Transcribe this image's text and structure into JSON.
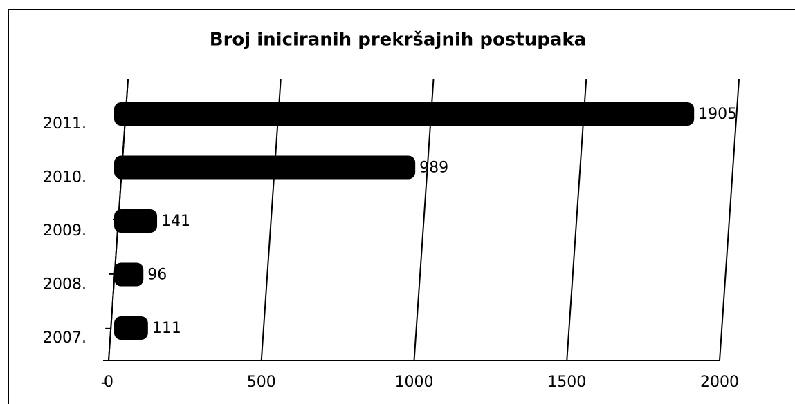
{
  "chart_data": {
    "type": "bar",
    "orientation": "horizontal",
    "title": "Broj iniciranih  prekršajnih postupaka",
    "categories": [
      "2011.",
      "2010.",
      "2009.",
      "2008.",
      "2007."
    ],
    "values": [
      1905,
      989,
      141,
      96,
      111
    ],
    "color": "#000000",
    "xlim": [
      0,
      2000
    ],
    "xticks": [
      0,
      500,
      1000,
      1500,
      2000
    ],
    "grid": true
  }
}
